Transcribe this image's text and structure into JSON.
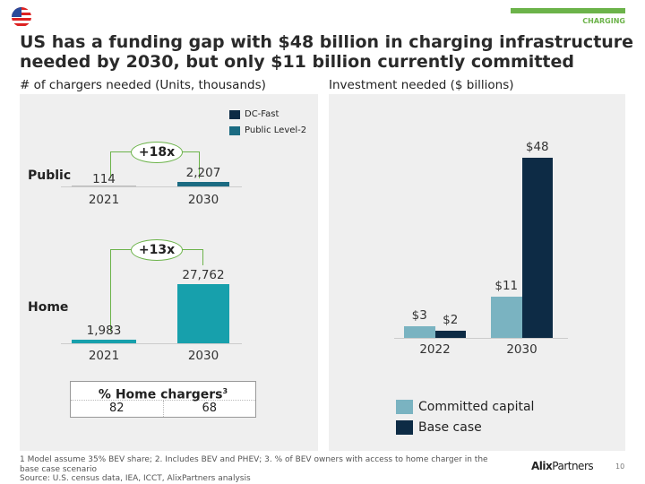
{
  "header": {
    "section_tag": "CHARGING",
    "title": "US has a funding gap with $48 billion in charging infrastructure needed by 2030, but only $11 billion currently committed",
    "flag_icon": "us-flag-icon"
  },
  "colors": {
    "green": "#6cb34a",
    "dc_fast": "#0d2b45",
    "public_l2": "#1b6b82",
    "home": "#17a0ac",
    "committed": "#7ab3c1",
    "base": "#0d2b45"
  },
  "chart_data": [
    {
      "type": "bar",
      "title": "# of chargers needed (Units, thousands)",
      "legend": [
        "DC-Fast",
        "Public Level-2"
      ],
      "groups": [
        {
          "name": "Public",
          "categories": [
            "2021",
            "2030"
          ],
          "values": [
            114,
            2207
          ],
          "labels": [
            "114",
            "2,207"
          ],
          "multiplier": "+18x"
        },
        {
          "name": "Home",
          "categories": [
            "2021",
            "2030"
          ],
          "values": [
            1983,
            27762
          ],
          "labels": [
            "1,983",
            "27,762"
          ],
          "multiplier": "+13x"
        }
      ],
      "table": {
        "header": "% Home chargers",
        "sup": "3",
        "values": [
          "82",
          "68"
        ]
      }
    },
    {
      "type": "bar",
      "title": "Investment needed ($ billions)",
      "categories": [
        "2022",
        "2030"
      ],
      "series": [
        {
          "name": "Committed capital",
          "values": [
            3,
            11
          ],
          "labels": [
            "$3",
            "$11"
          ]
        },
        {
          "name": "Base case",
          "values": [
            2,
            48
          ],
          "labels": [
            "$2",
            "$48"
          ]
        }
      ],
      "legend_position": "bottom"
    }
  ],
  "footer": {
    "notes": "1 Model assume 35% BEV share; 2. Includes BEV and PHEV; 3. % of BEV owners with access to home charger in the base case scenario",
    "source": "Source: U.S. census data, IEA, ICCT, AlixPartners analysis",
    "logo_bold": "Alix",
    "logo_rest": "Partners",
    "page": "10"
  }
}
